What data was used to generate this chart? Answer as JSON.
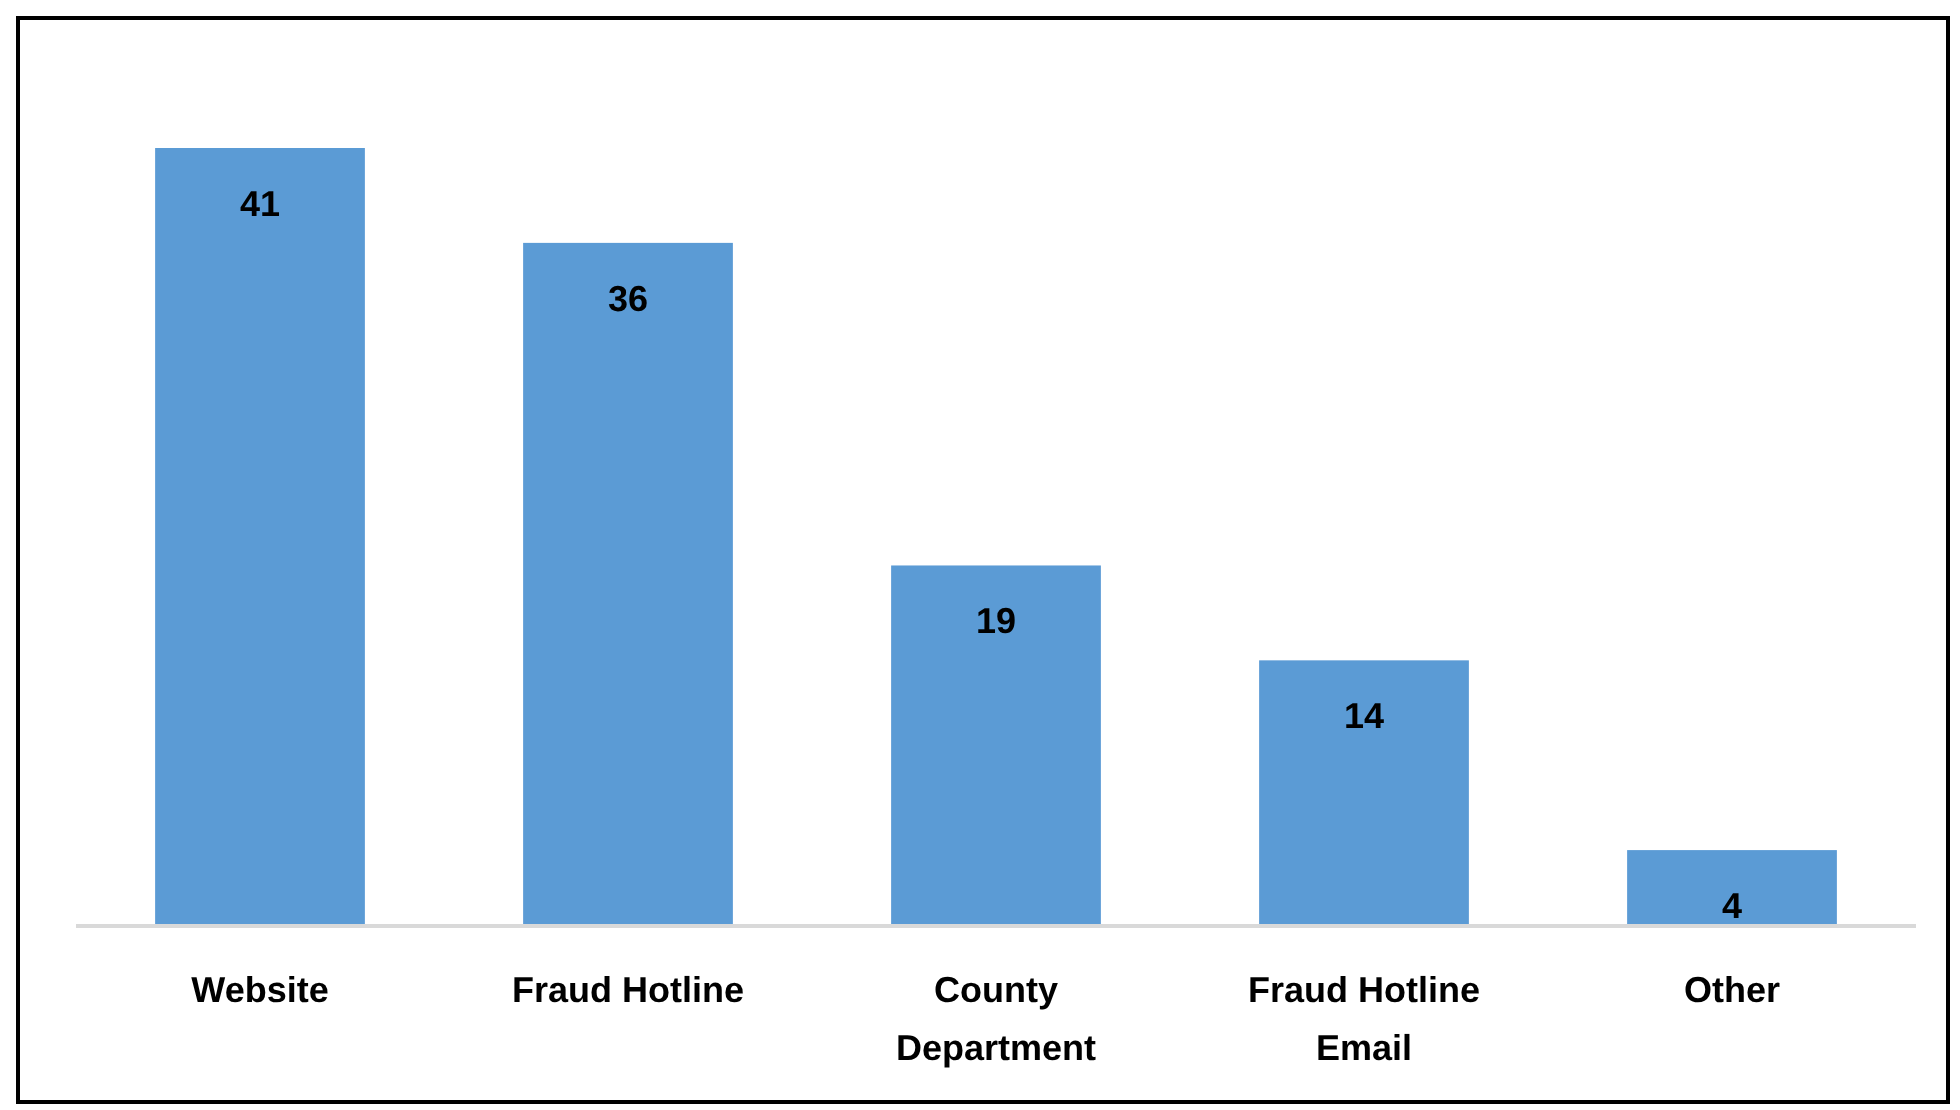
{
  "chart_data": {
    "type": "bar",
    "categories": [
      "Website",
      "Fraud Hotline",
      "County Department",
      "Fraud Hotline Email",
      "Other"
    ],
    "values": [
      41,
      36,
      19,
      14,
      4
    ],
    "color": "#5b9bd5",
    "data_labels": true
  }
}
